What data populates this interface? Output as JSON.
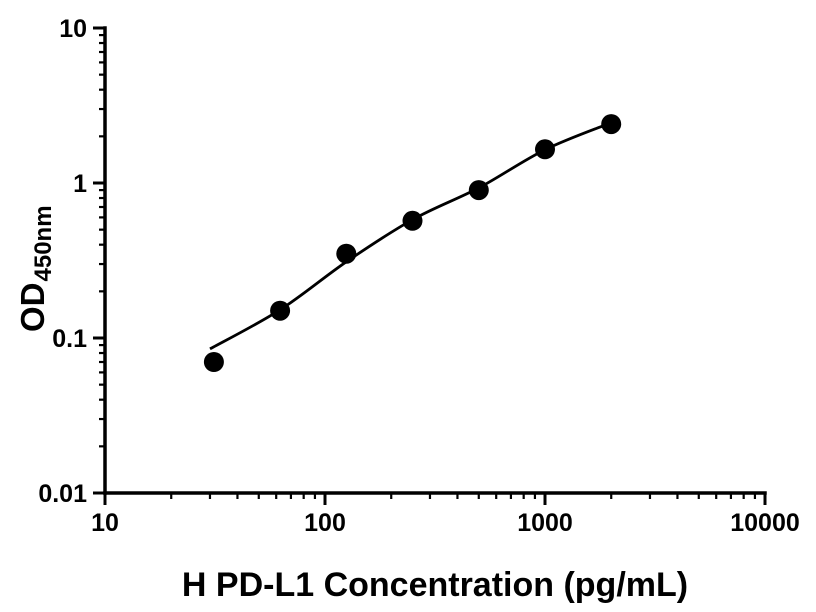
{
  "figure": {
    "background_color": "#ffffff",
    "axis_color": "#000000",
    "point_color": "#000000",
    "curve_color": "#000000"
  },
  "chart_data": {
    "type": "scatter",
    "title": "",
    "xlabel": "H PD-L1 Concentration (pg/mL)",
    "ylabel_main": "OD",
    "ylabel_sub": "450nm",
    "x_scale": "log10",
    "y_scale": "log10",
    "xlim": [
      10,
      10000
    ],
    "ylim": [
      0.01,
      10
    ],
    "x_tick_labels": [
      "10",
      "100",
      "1000",
      "10000"
    ],
    "y_tick_labels": [
      "0.01",
      "0.1",
      "1",
      "10"
    ],
    "grid": false,
    "legend": false,
    "minor_log_ticks": true,
    "x": [
      31.25,
      62.5,
      125,
      250,
      500,
      1000,
      2000
    ],
    "y": [
      0.07,
      0.15,
      0.35,
      0.57,
      0.9,
      1.65,
      2.4
    ],
    "fit_curve": {
      "x": [
        30,
        62.5,
        125,
        250,
        500,
        1000,
        2000
      ],
      "y": [
        0.085,
        0.152,
        0.31,
        0.58,
        0.93,
        1.64,
        2.45
      ]
    }
  }
}
